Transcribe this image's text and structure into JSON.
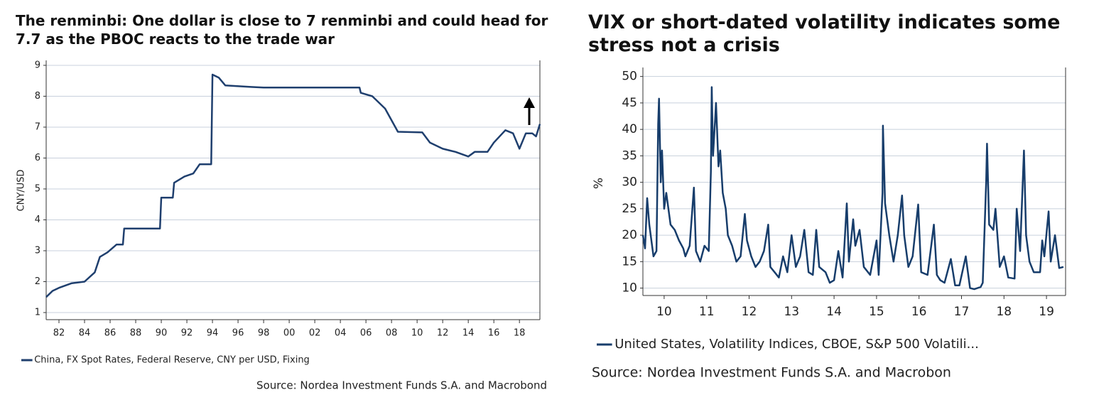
{
  "chart_data": [
    {
      "type": "line",
      "title": "The renminbi: One dollar is close to 7 renminbi and could head for 7.7 as the PBOC reacts to the trade war",
      "y_label": "CNY/USD",
      "source": "Source: Nordea Investment Funds S.A. and Macrobond",
      "x": [
        1981,
        1981.5,
        1982,
        1983,
        1984,
        1984.8,
        1985.2,
        1985.8,
        1986.5,
        1987,
        1987.1,
        1989.9,
        1990.0,
        1990.9,
        1991,
        1991.8,
        1992.5,
        1993,
        1993.9,
        1994.0,
        1994.5,
        1995,
        1997,
        1998,
        2005.5,
        2005.6,
        2006.5,
        2007.5,
        2008.5,
        2010.4,
        2011,
        2012,
        2013,
        2014,
        2014.5,
        2015.5,
        2016,
        2016.9,
        2017.5,
        2018.0,
        2018.5,
        2019,
        2019.3,
        2019.6
      ],
      "series": [
        {
          "name": "China, FX Spot Rates, Federal Reserve, CNY per USD, Fixing",
          "color": "#1f3f6e",
          "values": [
            1.5,
            1.7,
            1.8,
            1.95,
            2.0,
            2.3,
            2.8,
            2.95,
            3.2,
            3.2,
            3.72,
            3.72,
            4.72,
            4.72,
            5.2,
            5.4,
            5.5,
            5.8,
            5.8,
            8.7,
            8.6,
            8.35,
            8.3,
            8.28,
            8.28,
            8.11,
            8.0,
            7.6,
            6.85,
            6.83,
            6.5,
            6.3,
            6.2,
            6.05,
            6.2,
            6.2,
            6.5,
            6.9,
            6.8,
            6.3,
            6.8,
            6.8,
            6.7,
            7.1
          ]
        }
      ],
      "xlim": [
        1981,
        2019.6
      ],
      "xticks": [
        {
          "value": 1982,
          "label": "82"
        },
        {
          "value": 1984,
          "label": "84"
        },
        {
          "value": 1986,
          "label": "86"
        },
        {
          "value": 1988,
          "label": "88"
        },
        {
          "value": 1990,
          "label": "90"
        },
        {
          "value": 1992,
          "label": "92"
        },
        {
          "value": 1994,
          "label": "94"
        },
        {
          "value": 1996,
          "label": "96"
        },
        {
          "value": 1998,
          "label": "98"
        },
        {
          "value": 2000,
          "label": "00"
        },
        {
          "value": 2002,
          "label": "02"
        },
        {
          "value": 2004,
          "label": "04"
        },
        {
          "value": 2006,
          "label": "06"
        },
        {
          "value": 2008,
          "label": "08"
        },
        {
          "value": 2010,
          "label": "10"
        },
        {
          "value": 2012,
          "label": "12"
        },
        {
          "value": 2014,
          "label": "14"
        },
        {
          "value": 2016,
          "label": "16"
        },
        {
          "value": 2018,
          "label": "18"
        }
      ],
      "ylim": [
        0.77,
        9.16
      ],
      "yticks": [
        1,
        2,
        3,
        4,
        5,
        6,
        7,
        8,
        9
      ],
      "grid": true
    },
    {
      "type": "line",
      "title": "VIX or short-dated volatility indicates some stress not a crisis",
      "y_label": "%",
      "source": "Source: Nordea Investment Funds S.A. and Macrobon",
      "x": [
        2010.0,
        2010.05,
        2010.1,
        2010.15,
        2010.25,
        2010.32,
        2010.36,
        2010.38,
        2010.42,
        2010.45,
        2010.5,
        2010.55,
        2010.65,
        2010.75,
        2010.85,
        2010.95,
        2011.0,
        2011.1,
        2011.2,
        2011.25,
        2011.35,
        2011.45,
        2011.55,
        2011.6,
        2011.62,
        2011.65,
        2011.7,
        2011.72,
        2011.78,
        2011.82,
        2011.88,
        2011.95,
        2012.0,
        2012.1,
        2012.2,
        2012.3,
        2012.4,
        2012.45,
        2012.55,
        2012.65,
        2012.75,
        2012.85,
        2012.95,
        2013.0,
        2013.1,
        2013.2,
        2013.3,
        2013.4,
        2013.5,
        2013.6,
        2013.7,
        2013.8,
        2013.9,
        2014.0,
        2014.08,
        2014.15,
        2014.3,
        2014.4,
        2014.5,
        2014.6,
        2014.7,
        2014.8,
        2014.85,
        2014.95,
        2015.0,
        2015.1,
        2015.2,
        2015.35,
        2015.5,
        2015.55,
        2015.64,
        2015.65,
        2015.7,
        2015.8,
        2015.9,
        2016.0,
        2016.1,
        2016.15,
        2016.25,
        2016.35,
        2016.48,
        2016.55,
        2016.7,
        2016.85,
        2016.92,
        2017.0,
        2017.1,
        2017.25,
        2017.35,
        2017.45,
        2017.6,
        2017.7,
        2017.8,
        2017.95,
        2018.0,
        2018.08,
        2018.1,
        2018.15,
        2018.25,
        2018.3,
        2018.4,
        2018.5,
        2018.6,
        2018.75,
        2018.8,
        2018.88,
        2018.97,
        2019.02,
        2019.1,
        2019.2,
        2019.35,
        2019.4,
        2019.45,
        2019.55,
        2019.6,
        2019.7,
        2019.8,
        2019.9
      ],
      "series": [
        {
          "name": "United States, Volatility Indices, CBOE, S&P 500 Volatili...",
          "color": "#173d6b",
          "values": [
            20,
            17.5,
            27,
            22,
            16,
            17,
            41,
            45.8,
            30,
            36,
            25,
            28,
            22,
            21,
            19,
            17.5,
            16,
            18,
            29,
            17,
            15,
            18,
            17,
            32,
            48,
            35,
            42,
            45,
            33,
            36,
            28,
            25,
            20,
            18,
            15,
            16,
            24,
            19,
            16,
            14,
            15,
            17,
            22,
            14,
            13,
            12,
            16,
            13,
            20,
            14,
            16,
            21,
            13,
            12.5,
            21,
            14,
            13,
            11,
            11.5,
            17,
            12,
            26,
            15,
            23,
            18,
            21,
            14,
            12.5,
            19,
            12.5,
            28,
            40.7,
            26,
            20,
            15,
            20,
            27.5,
            20,
            14,
            16,
            25.8,
            13,
            12.5,
            22,
            12.5,
            11.5,
            11,
            15.5,
            10.5,
            10.5,
            16,
            10,
            9.8,
            10.2,
            11,
            30,
            37.3,
            22,
            21,
            25,
            14,
            16,
            12,
            11.8,
            25,
            17,
            36,
            20,
            15,
            13,
            13,
            19,
            16,
            24.5,
            15,
            20,
            13.8,
            14
          ]
        }
      ],
      "xlim": [
        2010,
        2019.95
      ],
      "xticks": [
        {
          "value": 2010.5,
          "label": "10"
        },
        {
          "value": 2011.5,
          "label": "11"
        },
        {
          "value": 2012.5,
          "label": "12"
        },
        {
          "value": 2013.5,
          "label": "13"
        },
        {
          "value": 2014.5,
          "label": "14"
        },
        {
          "value": 2015.5,
          "label": "15"
        },
        {
          "value": 2016.5,
          "label": "16"
        },
        {
          "value": 2017.5,
          "label": "17"
        },
        {
          "value": 2018.5,
          "label": "18"
        },
        {
          "value": 2019.5,
          "label": "19"
        }
      ],
      "ylim": [
        8.6,
        51.7
      ],
      "yticks": [
        10,
        15,
        20,
        25,
        30,
        35,
        40,
        45,
        50
      ],
      "grid": true
    }
  ]
}
